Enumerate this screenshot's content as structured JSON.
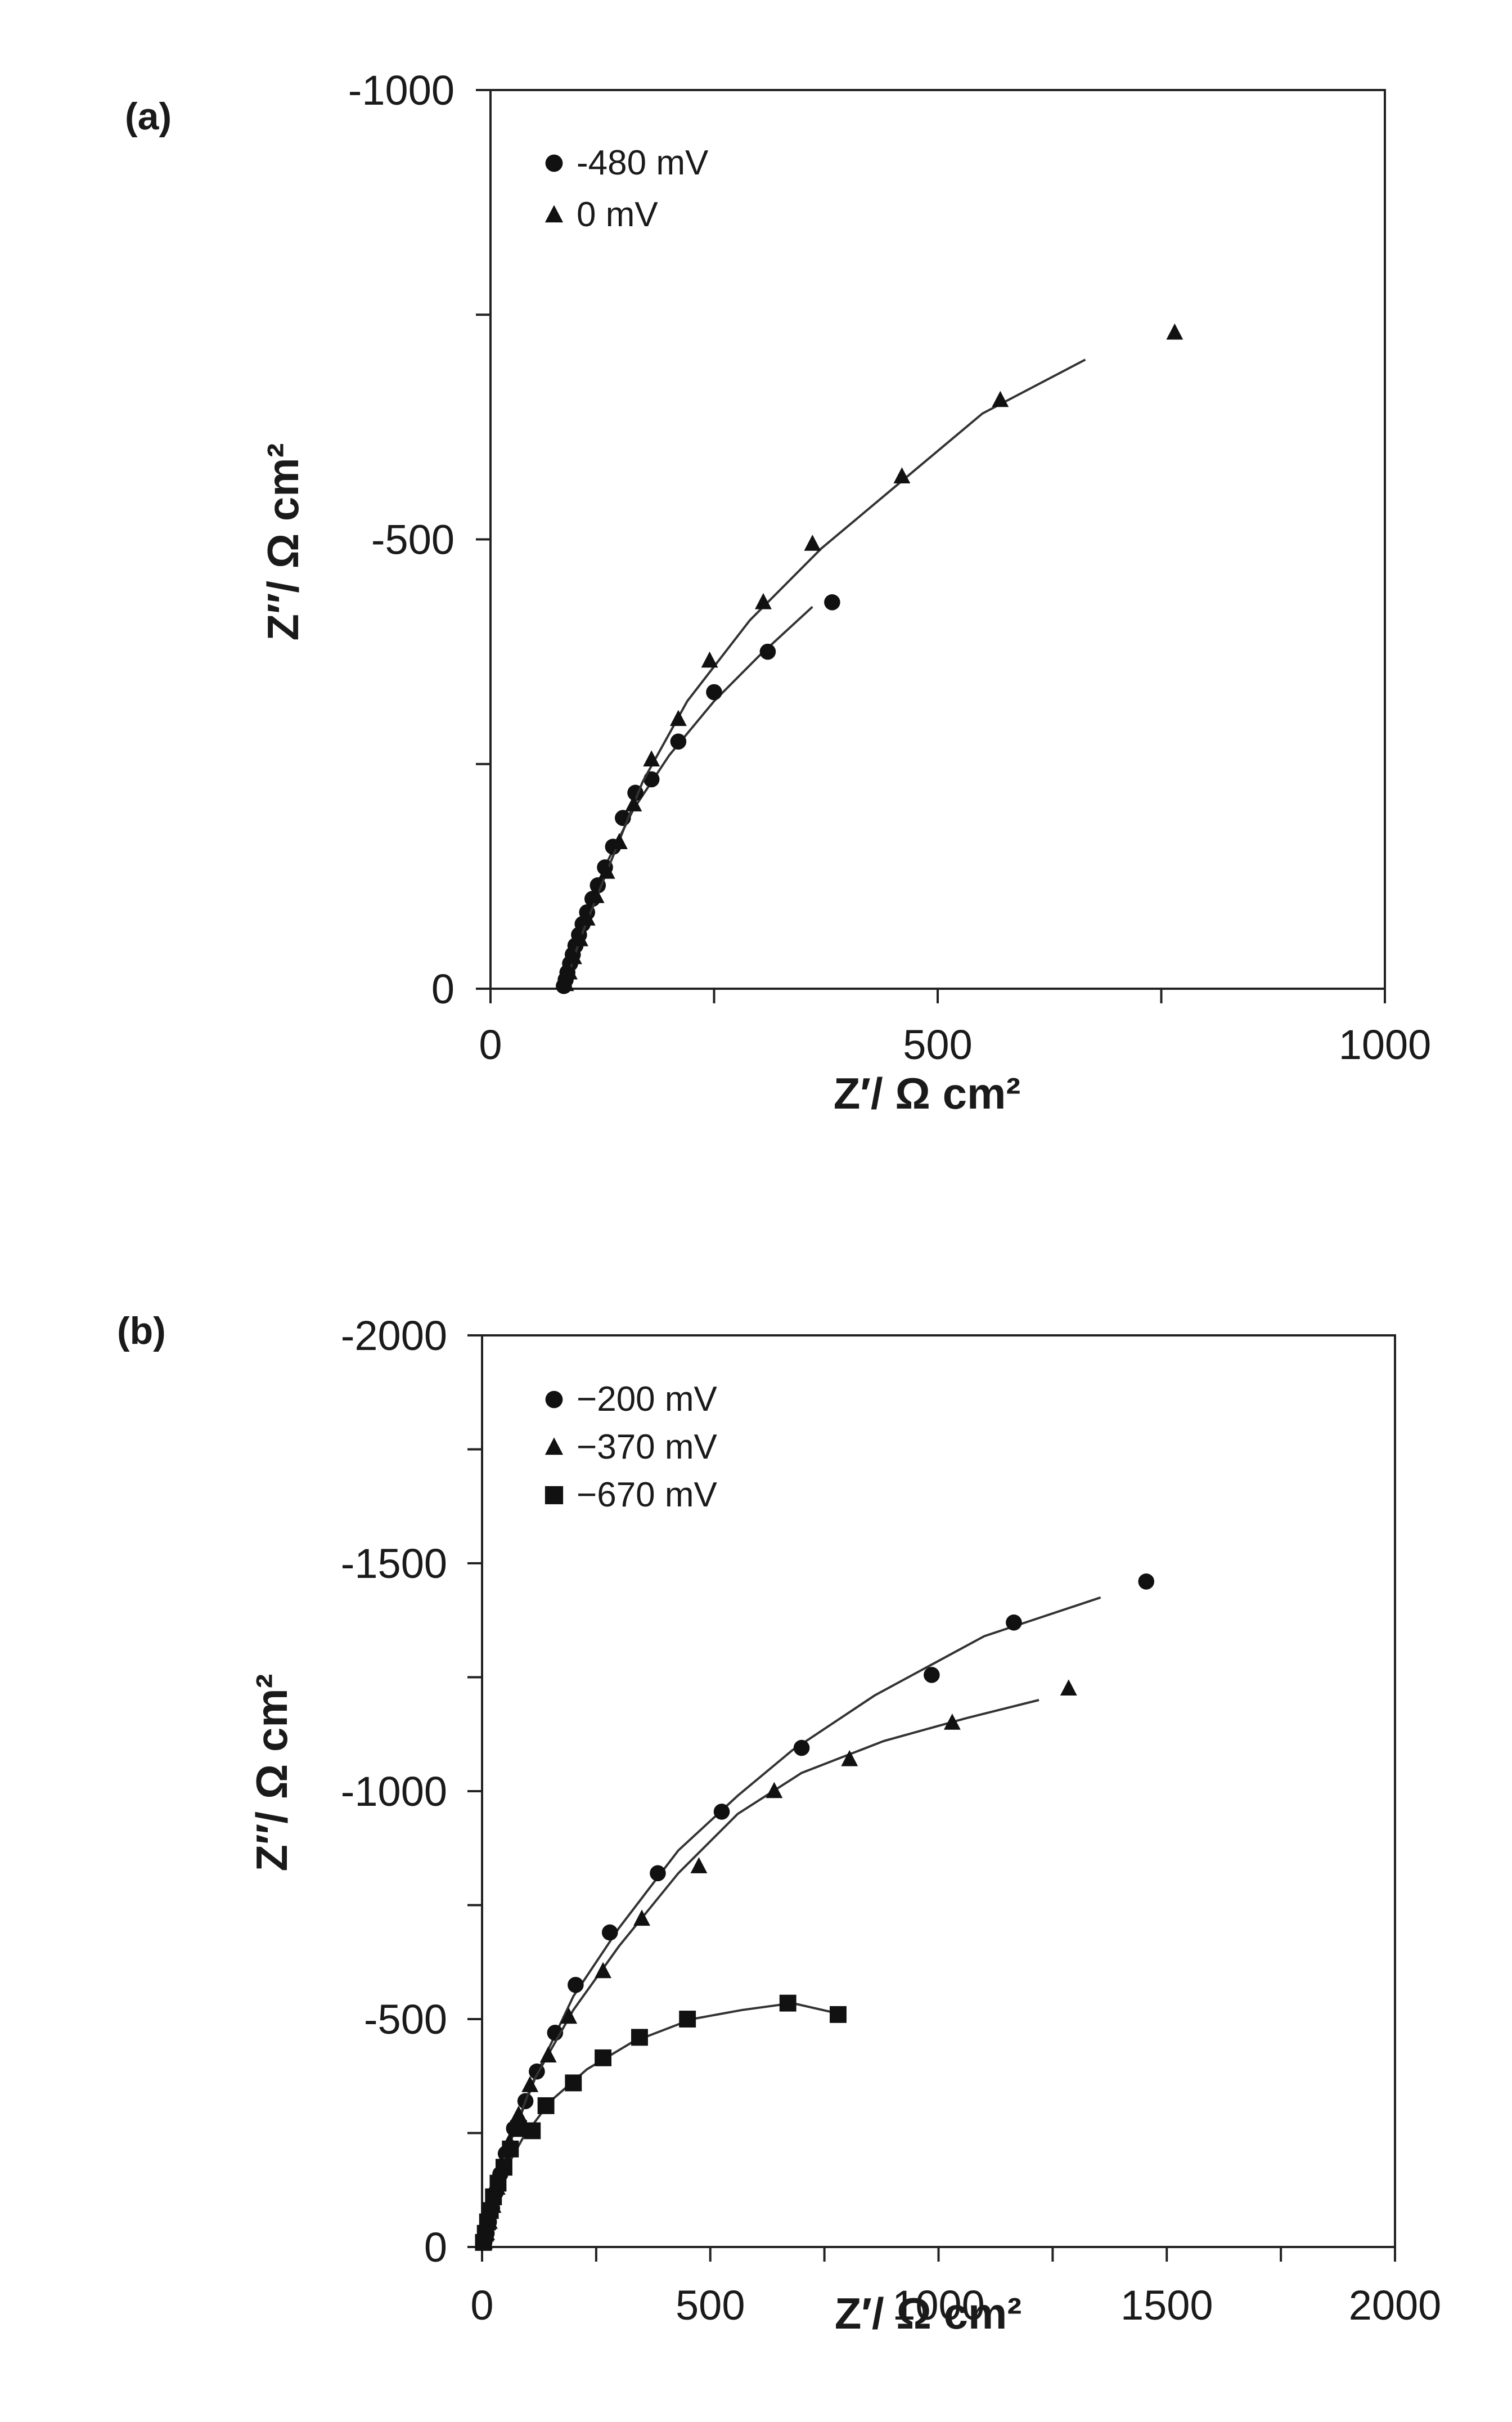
{
  "chart_data": [
    {
      "type": "scatter",
      "panel_label": "(a)",
      "xlabel": "Z′/ Ω cm²",
      "ylabel": "Z″/ Ω cm²",
      "xlim": [
        0,
        1000
      ],
      "ylim": [
        0,
        -1000
      ],
      "xticks": [
        0,
        500,
        1000
      ],
      "xtick_labels": [
        "0",
        "500",
        "1000"
      ],
      "yticks": [
        0,
        -500,
        -1000
      ],
      "ytick_labels": [
        "0",
        "-500",
        "-1000"
      ],
      "minor_tick_step": 250,
      "legend_position": "top-left",
      "series": [
        {
          "name": "-480 mV",
          "marker": "circle",
          "points": [
            [
              82,
              -3
            ],
            [
              84,
              -10
            ],
            [
              86,
              -18
            ],
            [
              89,
              -28
            ],
            [
              92,
              -38
            ],
            [
              95,
              -48
            ],
            [
              99,
              -60
            ],
            [
              103,
              -72
            ],
            [
              108,
              -85
            ],
            [
              114,
              -100
            ],
            [
              120,
              -115
            ],
            [
              128,
              -135
            ],
            [
              137,
              -158
            ],
            [
              148,
              -190
            ],
            [
              162,
              -218
            ],
            [
              180,
              -233
            ],
            [
              210,
              -275
            ],
            [
              250,
              -330
            ],
            [
              310,
              -375
            ],
            [
              382,
              -430
            ]
          ],
          "fit": [
            [
              82,
              0
            ],
            [
              95,
              -48
            ],
            [
              110,
              -90
            ],
            [
              130,
              -140
            ],
            [
              160,
              -200
            ],
            [
              200,
              -260
            ],
            [
              250,
              -320
            ],
            [
              300,
              -370
            ],
            [
              360,
              -425
            ]
          ]
        },
        {
          "name": "0 mV",
          "marker": "triangle",
          "points": [
            [
              84,
              -5
            ],
            [
              88,
              -18
            ],
            [
              93,
              -35
            ],
            [
              100,
              -55
            ],
            [
              108,
              -78
            ],
            [
              118,
              -103
            ],
            [
              130,
              -130
            ],
            [
              144,
              -163
            ],
            [
              160,
              -205
            ],
            [
              180,
              -255
            ],
            [
              210,
              -300
            ],
            [
              245,
              -365
            ],
            [
              305,
              -430
            ],
            [
              360,
              -495
            ],
            [
              460,
              -570
            ],
            [
              570,
              -655
            ],
            [
              765,
              -730
            ]
          ],
          "fit": [
            [
              82,
              0
            ],
            [
              100,
              -55
            ],
            [
              130,
              -130
            ],
            [
              170,
              -230
            ],
            [
              220,
              -320
            ],
            [
              290,
              -410
            ],
            [
              370,
              -490
            ],
            [
              460,
              -565
            ],
            [
              550,
              -640
            ],
            [
              665,
              -700
            ]
          ]
        }
      ]
    },
    {
      "type": "scatter",
      "panel_label": "(b)",
      "xlabel": "Z′/ Ω cm²",
      "ylabel": "Z″/ Ω cm²",
      "xlim": [
        0,
        2000
      ],
      "ylim": [
        0,
        -2000
      ],
      "xticks": [
        0,
        500,
        1000,
        1500,
        2000
      ],
      "xtick_labels": [
        "0",
        "500",
        "1000",
        "1500",
        "2000"
      ],
      "yticks": [
        0,
        -500,
        -1000,
        -1500,
        -2000
      ],
      "ytick_labels": [
        "0",
        "-500",
        "-1000",
        "-1500",
        "-2000"
      ],
      "minor_tick_step": 250,
      "legend_position": "top-left",
      "series": [
        {
          "name": "−200 mV",
          "marker": "circle",
          "points": [
            [
              5,
              -10
            ],
            [
              10,
              -30
            ],
            [
              15,
              -55
            ],
            [
              22,
              -85
            ],
            [
              30,
              -120
            ],
            [
              40,
              -160
            ],
            [
              52,
              -205
            ],
            [
              70,
              -260
            ],
            [
              95,
              -320
            ],
            [
              120,
              -385
            ],
            [
              160,
              -470
            ],
            [
              205,
              -575
            ],
            [
              280,
              -690
            ],
            [
              385,
              -820
            ],
            [
              525,
              -955
            ],
            [
              700,
              -1095
            ],
            [
              985,
              -1255
            ],
            [
              1165,
              -1370
            ],
            [
              1455,
              -1460
            ]
          ],
          "fit": [
            [
              0,
              0
            ],
            [
              50,
              -200
            ],
            [
              120,
              -380
            ],
            [
              200,
              -550
            ],
            [
              300,
              -700
            ],
            [
              430,
              -870
            ],
            [
              560,
              -990
            ],
            [
              680,
              -1090
            ],
            [
              860,
              -1210
            ],
            [
              1100,
              -1340
            ],
            [
              1355,
              -1425
            ]
          ]
        },
        {
          "name": "−370 mV",
          "marker": "triangle",
          "points": [
            [
              5,
              -10
            ],
            [
              10,
              -30
            ],
            [
              16,
              -55
            ],
            [
              24,
              -90
            ],
            [
              33,
              -130
            ],
            [
              45,
              -175
            ],
            [
              60,
              -230
            ],
            [
              80,
              -290
            ],
            [
              105,
              -355
            ],
            [
              145,
              -420
            ],
            [
              190,
              -505
            ],
            [
              265,
              -605
            ],
            [
              350,
              -720
            ],
            [
              475,
              -835
            ],
            [
              640,
              -1000
            ],
            [
              805,
              -1070
            ],
            [
              1030,
              -1150
            ],
            [
              1285,
              -1225
            ]
          ],
          "fit": [
            [
              0,
              0
            ],
            [
              50,
              -200
            ],
            [
              110,
              -360
            ],
            [
              200,
              -520
            ],
            [
              300,
              -660
            ],
            [
              430,
              -820
            ],
            [
              560,
              -950
            ],
            [
              700,
              -1040
            ],
            [
              880,
              -1110
            ],
            [
              1060,
              -1160
            ],
            [
              1220,
              -1200
            ]
          ]
        },
        {
          "name": "−670 mV",
          "marker": "square",
          "points": [
            [
              3,
              -10
            ],
            [
              7,
              -30
            ],
            [
              12,
              -55
            ],
            [
              18,
              -80
            ],
            [
              25,
              -110
            ],
            [
              35,
              -140
            ],
            [
              48,
              -175
            ],
            [
              62,
              -215
            ],
            [
              80,
              -260
            ],
            [
              110,
              -255
            ],
            [
              140,
              -310
            ],
            [
              200,
              -360
            ],
            [
              265,
              -415
            ],
            [
              345,
              -460
            ],
            [
              450,
              -500
            ],
            [
              670,
              -535
            ],
            [
              780,
              -510
            ]
          ],
          "fit": [
            [
              0,
              0
            ],
            [
              40,
              -150
            ],
            [
              90,
              -240
            ],
            [
              150,
              -320
            ],
            [
              230,
              -390
            ],
            [
              330,
              -450
            ],
            [
              460,
              -500
            ],
            [
              570,
              -520
            ],
            [
              680,
              -535
            ],
            [
              790,
              -510
            ]
          ]
        }
      ]
    }
  ]
}
